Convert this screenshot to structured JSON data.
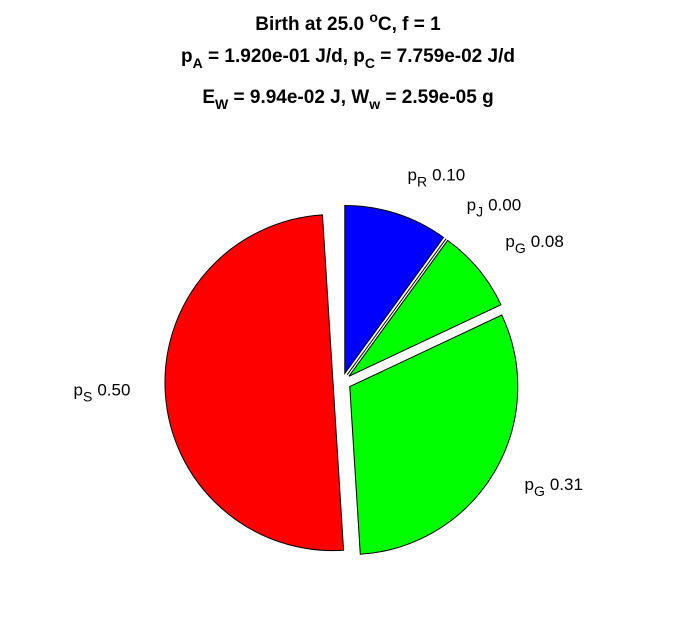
{
  "chart_data": {
    "type": "pie",
    "title": [
      [
        "Birth at 25.0 ",
        {
          "sup": "o"
        },
        "C, f = 1"
      ],
      [
        "p",
        {
          "sub": "A"
        },
        " = 1.920e-01 J/d, p",
        {
          "sub": "C"
        },
        " = 7.759e-02 J/d"
      ],
      [
        "E",
        {
          "sub": "W"
        },
        " = 9.94e-02 J, W",
        {
          "sub": "w"
        },
        " = 2.59e-05 g"
      ]
    ],
    "categories": [
      [
        "p",
        {
          "sub": "R"
        }
      ],
      [
        "p",
        {
          "sub": "J"
        }
      ],
      [
        "p",
        {
          "sub": "G"
        }
      ],
      [
        "p",
        {
          "sub": "G"
        }
      ],
      [
        "p",
        {
          "sub": "S"
        }
      ]
    ],
    "values": [
      0.1,
      0.0,
      0.08,
      0.31,
      0.5
    ],
    "value_labels": [
      "0.10",
      "0.00",
      "0.08",
      "0.31",
      "0.50"
    ],
    "colors": [
      "#0000ff",
      "#ffffff",
      "#00ff00",
      "#00ff00",
      "#ff0000"
    ]
  }
}
